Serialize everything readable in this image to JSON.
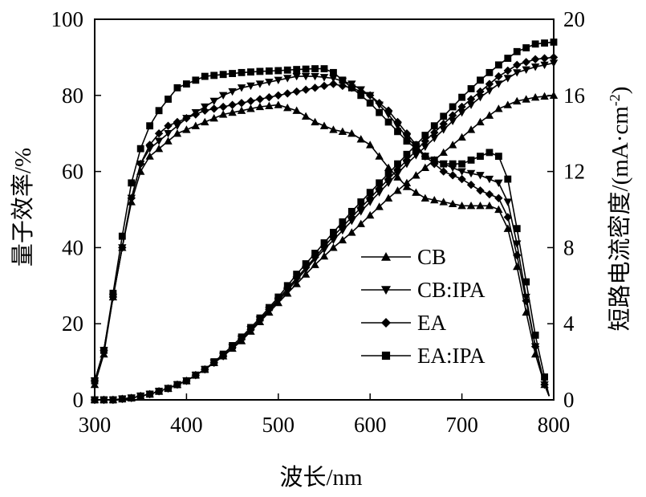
{
  "chart_data": {
    "type": "line",
    "title": "",
    "xlabel": "波长/nm",
    "ylabel_left": "量子效率/%",
    "ylabel_right": "短路电流密度/(mA·cm",
    "ylabel_right_sup": "-2",
    "ylabel_right_end": ")",
    "xlim": [
      300,
      800
    ],
    "ylim_left": [
      0,
      100
    ],
    "ylim_right": [
      0,
      20
    ],
    "x_ticks": [
      "300",
      "400",
      "500",
      "600",
      "700",
      "800"
    ],
    "y_left_ticks": [
      "0",
      "20",
      "40",
      "60",
      "80",
      "100"
    ],
    "y_right_ticks": [
      "0",
      "4",
      "8",
      "12",
      "16",
      "20"
    ],
    "grid": false,
    "legend_position": "center-right",
    "series": [
      {
        "name": "CB",
        "marker": "triangle-up",
        "axis": "left",
        "kind": "EQE",
        "x": [
          300,
          310,
          320,
          330,
          340,
          350,
          360,
          370,
          380,
          390,
          400,
          420,
          440,
          460,
          480,
          500,
          520,
          540,
          560,
          580,
          600,
          620,
          640,
          660,
          680,
          690,
          700,
          720,
          730,
          740,
          750,
          760,
          770,
          780,
          790,
          795
        ],
        "y": [
          4,
          12,
          27,
          40,
          52,
          60,
          64,
          66,
          68,
          70,
          71,
          73,
          75,
          76,
          77,
          77.5,
          76,
          73,
          71,
          70,
          67,
          61,
          56,
          53,
          52,
          51.5,
          51,
          51,
          51,
          50,
          45,
          35,
          23,
          12,
          4,
          1
        ]
      },
      {
        "name": "CB:IPA",
        "marker": "triangle-down",
        "axis": "left",
        "kind": "EQE",
        "x": [
          300,
          310,
          320,
          330,
          340,
          350,
          360,
          370,
          380,
          390,
          400,
          420,
          440,
          460,
          480,
          500,
          520,
          540,
          560,
          580,
          600,
          620,
          640,
          660,
          680,
          700,
          720,
          730,
          740,
          750,
          760,
          770,
          780,
          790,
          795
        ],
        "y": [
          5,
          13,
          27,
          40,
          53,
          62,
          66,
          68,
          70,
          72,
          74,
          77,
          80,
          82,
          83,
          84,
          85,
          85,
          84.5,
          83,
          80,
          75,
          69,
          64,
          62,
          60,
          59,
          58,
          57,
          52,
          41,
          27,
          14,
          4,
          1
        ]
      },
      {
        "name": "EA",
        "marker": "diamond",
        "axis": "left",
        "kind": "EQE",
        "x": [
          300,
          310,
          320,
          330,
          340,
          350,
          360,
          370,
          380,
          390,
          400,
          420,
          440,
          460,
          480,
          500,
          520,
          540,
          560,
          580,
          600,
          620,
          640,
          660,
          680,
          700,
          720,
          730,
          740,
          750,
          760,
          770,
          780,
          790,
          795
        ],
        "y": [
          5,
          13,
          27,
          40,
          53,
          62,
          67,
          70,
          72,
          73,
          74,
          76,
          77,
          78,
          79,
          80,
          81,
          82,
          83,
          82,
          80,
          76,
          70,
          64,
          60,
          58,
          55,
          54,
          53,
          48,
          38,
          26,
          14,
          4,
          1
        ]
      },
      {
        "name": "EA:IPA",
        "marker": "square",
        "axis": "left",
        "kind": "EQE",
        "x": [
          300,
          310,
          320,
          330,
          340,
          350,
          360,
          370,
          380,
          390,
          400,
          410,
          420,
          440,
          460,
          480,
          500,
          520,
          540,
          550,
          560,
          570,
          580,
          600,
          620,
          640,
          660,
          680,
          700,
          720,
          730,
          740,
          750,
          760,
          770,
          780,
          790,
          795
        ],
        "y": [
          5,
          13,
          28,
          43,
          57,
          66,
          72,
          76,
          79,
          82,
          83,
          84,
          85,
          85.5,
          86,
          86.3,
          86.5,
          86.8,
          87,
          87,
          86,
          84,
          82,
          78,
          73,
          68,
          64,
          62,
          62,
          64,
          65,
          64,
          58,
          45,
          31,
          17,
          6,
          1
        ]
      },
      {
        "name": "CB",
        "marker": "triangle-up",
        "axis": "right",
        "kind": "Jsc",
        "x": [
          300,
          320,
          340,
          360,
          380,
          400,
          420,
          440,
          460,
          480,
          500,
          520,
          540,
          560,
          580,
          600,
          620,
          640,
          660,
          680,
          700,
          720,
          740,
          760,
          780,
          800
        ],
        "y": [
          0,
          0,
          0.1,
          0.3,
          0.6,
          1,
          1.6,
          2.3,
          3.1,
          4.1,
          5.1,
          6.1,
          7.1,
          8.0,
          8.8,
          9.7,
          10.6,
          11.4,
          12.2,
          13.0,
          13.8,
          14.6,
          15.3,
          15.7,
          15.9,
          16.0
        ]
      },
      {
        "name": "CB:IPA",
        "marker": "triangle-down",
        "axis": "right",
        "kind": "Jsc",
        "x": [
          300,
          320,
          340,
          360,
          380,
          400,
          420,
          440,
          460,
          480,
          500,
          520,
          540,
          560,
          580,
          600,
          620,
          640,
          660,
          680,
          700,
          720,
          740,
          760,
          780,
          800
        ],
        "y": [
          0,
          0,
          0.1,
          0.3,
          0.6,
          1,
          1.6,
          2.3,
          3.2,
          4.2,
          5.2,
          6.3,
          7.4,
          8.4,
          9.4,
          10.4,
          11.4,
          12.4,
          13.3,
          14.2,
          15.1,
          15.9,
          16.6,
          17.2,
          17.5,
          17.7
        ]
      },
      {
        "name": "EA",
        "marker": "diamond",
        "axis": "right",
        "kind": "Jsc",
        "x": [
          300,
          320,
          340,
          360,
          380,
          400,
          420,
          440,
          460,
          480,
          500,
          520,
          540,
          560,
          580,
          600,
          620,
          640,
          660,
          680,
          700,
          720,
          740,
          760,
          780,
          800
        ],
        "y": [
          0,
          0,
          0.1,
          0.3,
          0.6,
          1,
          1.6,
          2.3,
          3.2,
          4.2,
          5.3,
          6.4,
          7.5,
          8.6,
          9.6,
          10.6,
          11.6,
          12.6,
          13.6,
          14.5,
          15.4,
          16.2,
          17.0,
          17.6,
          17.9,
          18.0
        ]
      },
      {
        "name": "EA:IPA",
        "marker": "square",
        "axis": "right",
        "kind": "Jsc",
        "x": [
          300,
          320,
          340,
          360,
          380,
          400,
          420,
          440,
          460,
          480,
          500,
          520,
          540,
          560,
          580,
          600,
          620,
          640,
          660,
          680,
          700,
          720,
          740,
          760,
          780,
          800
        ],
        "y": [
          0,
          0,
          0.1,
          0.3,
          0.6,
          1,
          1.6,
          2.4,
          3.3,
          4.3,
          5.4,
          6.6,
          7.7,
          8.8,
          9.9,
          10.9,
          11.9,
          12.9,
          13.9,
          14.9,
          15.9,
          16.8,
          17.6,
          18.3,
          18.7,
          18.8
        ]
      }
    ]
  }
}
